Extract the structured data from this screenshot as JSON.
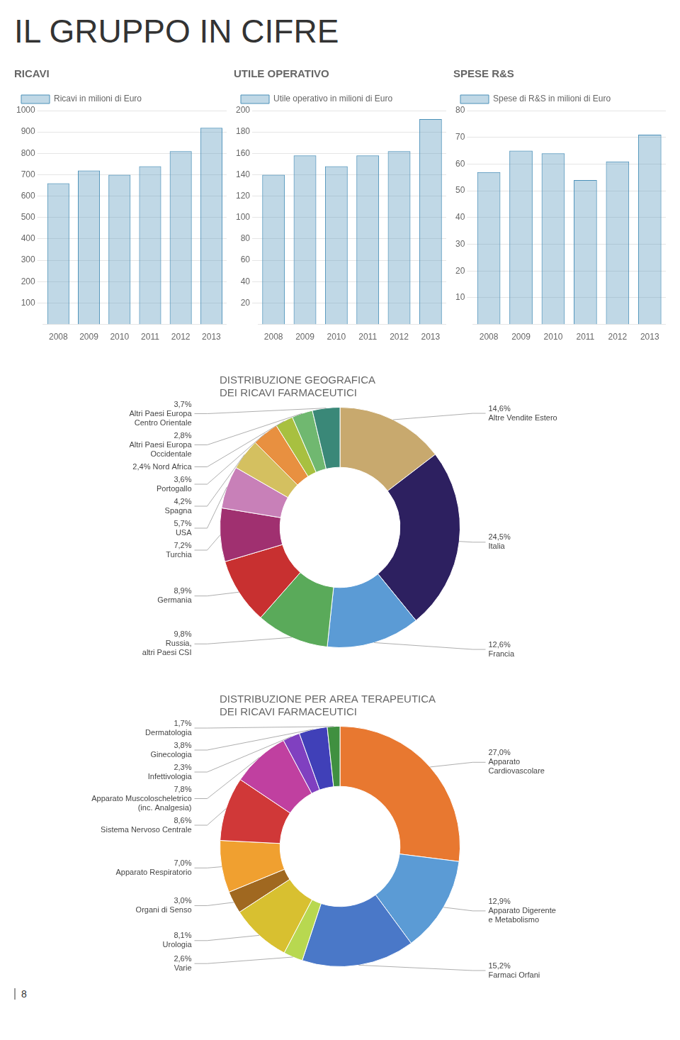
{
  "title": "IL GRUPPO IN CIFRE",
  "annotations": [
    "8"
  ],
  "chart_data": [
    {
      "type": "bar",
      "title": "RICAVI",
      "categories": [
        "2008",
        "2009",
        "2010",
        "2011",
        "2012",
        "2013"
      ],
      "series": [
        {
          "name": "Ricavi in milioni di Euro",
          "color": "#4a90b8",
          "values": [
            660,
            720,
            700,
            740,
            810,
            920
          ]
        }
      ],
      "ylim": [
        0,
        1000
      ],
      "yticks": [
        100,
        200,
        300,
        400,
        500,
        600,
        700,
        800,
        900,
        1000
      ],
      "grid": true,
      "legend": "top"
    },
    {
      "type": "bar",
      "title": "UTILE OPERATIVO",
      "categories": [
        "2008",
        "2009",
        "2010",
        "2011",
        "2012",
        "2013"
      ],
      "series": [
        {
          "name": "Utile operativo in milioni di Euro",
          "color": "#4a90b8",
          "values": [
            140,
            158,
            148,
            158,
            162,
            192
          ]
        }
      ],
      "ylim": [
        0,
        200
      ],
      "yticks": [
        20,
        40,
        60,
        80,
        100,
        120,
        140,
        160,
        180,
        200
      ],
      "grid": true,
      "legend": "top"
    },
    {
      "type": "bar",
      "title": "SPESE R&S",
      "categories": [
        "2008",
        "2009",
        "2010",
        "2011",
        "2012",
        "2013"
      ],
      "series": [
        {
          "name": "Spese di R&S in milioni di Euro",
          "color": "#4a90b8",
          "values": [
            57,
            65,
            64,
            54,
            61,
            71
          ]
        }
      ],
      "ylim": [
        0,
        80
      ],
      "yticks": [
        10,
        20,
        30,
        40,
        50,
        60,
        70,
        80
      ],
      "grid": true,
      "legend": "top"
    },
    {
      "type": "doughnut",
      "title": [
        "DISTRIBUZIONE GEOGRAFICA",
        "DEI RICAVI FARMACEUTICI"
      ],
      "categories": [
        "Altre Vendite Estero",
        "Italia",
        "Francia",
        "Russia,\naltri Paesi CSI",
        "Germania",
        "Turchia",
        "USA",
        "Spagna",
        "Portogallo",
        null,
        "Altri Paesi Europa\nOccidentale",
        "Altri Paesi Europa\nCentro Orientale"
      ],
      "values": [
        14.6,
        24.5,
        12.6,
        9.8,
        8.9,
        7.2,
        5.7,
        4.2,
        3.6,
        2.4,
        2.8,
        3.7
      ],
      "value_labels": [
        "14,6%",
        "24,5%",
        "12,6%",
        "9,8%",
        "8,9%",
        "7,2%",
        "5,7%",
        "4,2%",
        "3,6%",
        "2,4% Nord Africa",
        "2,8%",
        "3,7%"
      ],
      "colors": [
        "#c8a96e",
        "#2d2060",
        "#5b9bd5",
        "#5aaa5a",
        "#c83030",
        "#a03070",
        "#c880b8",
        "#d4c060",
        "#e89040",
        "#a8c040",
        "#70b870",
        "#3a8878"
      ],
      "data_labels": true
    },
    {
      "type": "doughnut",
      "title": [
        "DISTRIBUZIONE PER AREA TERAPEUTICA",
        "DEI RICAVI FARMACEUTICI"
      ],
      "categories": [
        "Apparato\nCardiovascolare",
        "Apparato Digerente\ne Metabolismo",
        "Farmaci Orfani",
        "Varie",
        "Urologia",
        "Organi di Senso",
        "Apparato Respiratorio",
        "Sistema Nervoso Centrale",
        "Apparato Muscoloscheletrico\n(inc. Analgesia)",
        "Infettivologia",
        "Ginecologia",
        "Dermatologia"
      ],
      "values": [
        27.0,
        12.9,
        15.2,
        2.6,
        8.1,
        3.0,
        7.0,
        8.6,
        7.8,
        2.3,
        3.8,
        1.7
      ],
      "value_labels": [
        "27,0%",
        "12,9%",
        "15,2%",
        "2,6%",
        "8,1%",
        "3,0%",
        "7,0%",
        "8,6%",
        "7,8%",
        "2,3%",
        "3,8%",
        "1,7%"
      ],
      "colors": [
        "#e87830",
        "#5b9bd5",
        "#4a78c8",
        "#b8d850",
        "#d8c030",
        "#a06820",
        "#f0a030",
        "#d03838",
        "#c040a0",
        "#8040c0",
        "#4040b8",
        "#409040"
      ],
      "data_labels": true
    }
  ]
}
